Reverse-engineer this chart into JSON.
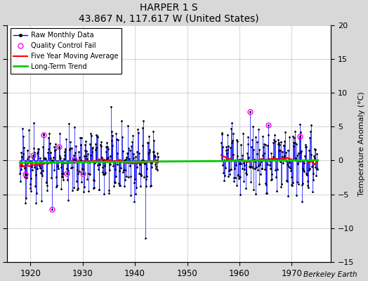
{
  "title": "HARPER 1 S",
  "subtitle": "43.867 N, 117.617 W (United States)",
  "ylabel": "Temperature Anomaly (°C)",
  "watermark": "Berkeley Earth",
  "xlim": [
    1915.5,
    1977.5
  ],
  "ylim": [
    -15,
    20
  ],
  "yticks": [
    -15,
    -10,
    -5,
    0,
    5,
    10,
    15,
    20
  ],
  "xticks": [
    1920,
    1930,
    1940,
    1950,
    1960,
    1970
  ],
  "raw_color": "#0000ff",
  "qc_color": "#ff00ff",
  "moving_avg_color": "#ff0000",
  "trend_color": "#00cc00",
  "figure_bg": "#d8d8d8",
  "axes_bg": "#ffffff",
  "seed": 42,
  "year_start": 1918.0,
  "gap_start": 1944.5,
  "gap_end": 1956.5,
  "year_end": 1975.0,
  "trend_slope": 0.006,
  "trend_intercept": -0.15
}
